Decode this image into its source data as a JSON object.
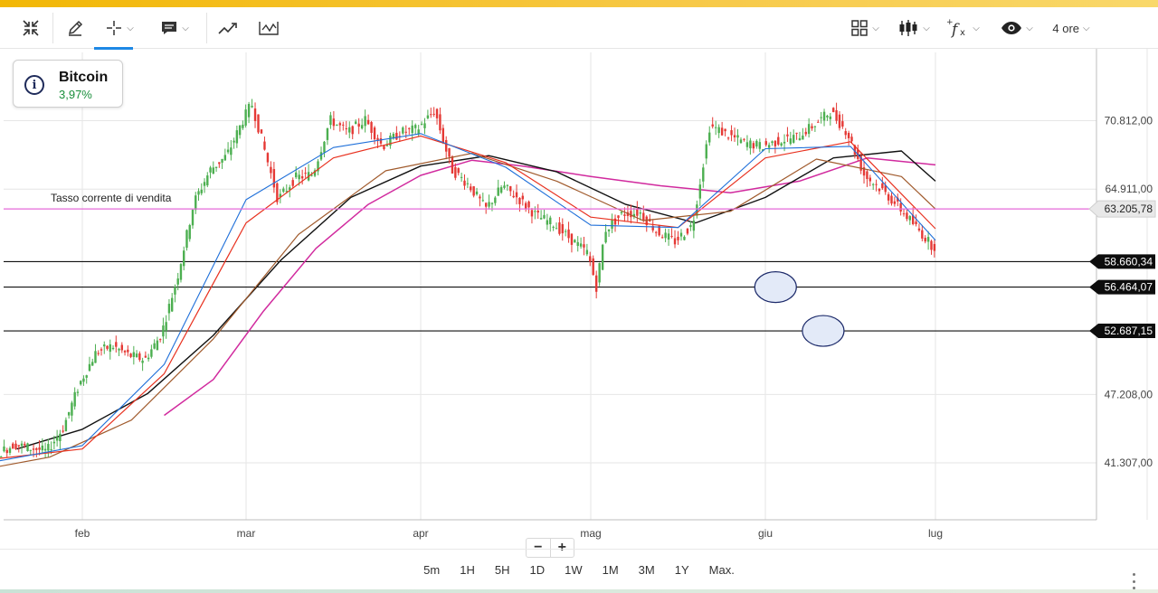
{
  "toolbar": {
    "icons": [
      "collapse-icon",
      "pencil-icon",
      "crosshair-icon",
      "comment-icon",
      "trend-icon",
      "indicator-chart-icon",
      "layout-grid-icon",
      "candlestick-icon",
      "function-icon",
      "eye-icon"
    ],
    "interval_label": "4 ore"
  },
  "asset": {
    "name": "Bitcoin",
    "change": "3,97%",
    "change_color": "#1a8f3c"
  },
  "colors": {
    "accent": "#1e88e5",
    "sell_line": "#e66ad8",
    "ema_fast": "#1e6fd9",
    "ema_mid": "#e8311f",
    "ema_slow": "#a05a2c",
    "ma_long_black": "#111111",
    "ma_long_magenta": "#d12a9e",
    "up_candle": "#4caf50",
    "down_candle": "#e53935"
  },
  "chart_data": {
    "type": "line",
    "title": "",
    "x_ticks": [
      "feb",
      "mar",
      "apr",
      "mag",
      "giu",
      "lug"
    ],
    "y_ticks": [
      "70.812,00",
      "64.911,00",
      "47.208,00",
      "41.307,00"
    ],
    "ylim": [
      36400,
      76700
    ],
    "grid": true,
    "sell_line": {
      "label": "Tasso corrente di vendita",
      "value": 63205.78,
      "tag": "63.205,78"
    },
    "horizontal_levels": [
      {
        "value": 58660.34,
        "tag": "58.660,34"
      },
      {
        "value": 56464.07,
        "tag": "56.464,07"
      },
      {
        "value": 52687.15,
        "tag": "52.687,15"
      }
    ],
    "annotations": [
      {
        "type": "ellipse",
        "x": 5.06,
        "y": 56464
      },
      {
        "type": "ellipse",
        "x": 5.34,
        "y": 52687
      }
    ],
    "x_index_note": "x values are months from start of January (1 = feb)",
    "series": [
      {
        "name": "",
        "kind": "price",
        "x": [
          0,
          0.1,
          0.2,
          0.3,
          0.4,
          0.5,
          0.6,
          0.7,
          0.8,
          0.9,
          1.0,
          1.1,
          1.2,
          1.3,
          1.4,
          1.5,
          1.6,
          1.7,
          1.8,
          1.9,
          2.0,
          2.05,
          2.1,
          2.15,
          2.2,
          2.3,
          2.4,
          2.5,
          2.6,
          2.7,
          2.8,
          2.9,
          3.0,
          3.1,
          3.2,
          3.3,
          3.4,
          3.5,
          3.6,
          3.7,
          3.8,
          3.9,
          4.0,
          4.05,
          4.1,
          4.2,
          4.3,
          4.4,
          4.5,
          4.6,
          4.7,
          4.8,
          4.9,
          5.0,
          5.1,
          5.2,
          5.3,
          5.4,
          5.5,
          5.6,
          5.7,
          5.8,
          5.9,
          6.0
        ],
        "y": [
          42200,
          41300,
          40300,
          39900,
          40600,
          42100,
          42900,
          42600,
          42300,
          44300,
          48100,
          50800,
          51400,
          50600,
          50200,
          52400,
          57400,
          63800,
          66600,
          67800,
          70900,
          72300,
          69600,
          66800,
          64000,
          65900,
          66200,
          70900,
          69800,
          70900,
          68600,
          69800,
          70100,
          71700,
          66600,
          65300,
          63200,
          65200,
          64000,
          62600,
          61900,
          60600,
          59400,
          56500,
          61400,
          62800,
          62900,
          61200,
          60400,
          61800,
          70400,
          69600,
          68900,
          68600,
          69100,
          69400,
          70400,
          71600,
          69800,
          66100,
          64900,
          63400,
          61700,
          60000
        ]
      },
      {
        "name": "",
        "kind": "ema_fast",
        "x": [
          0,
          0.5,
          1.0,
          1.5,
          2.0,
          2.5,
          3.0,
          3.5,
          4.0,
          4.5,
          5.0,
          5.5,
          6.0
        ],
        "y": [
          42000,
          41500,
          42800,
          49800,
          64000,
          68500,
          69700,
          66800,
          61800,
          61600,
          68400,
          68600,
          60500
        ]
      },
      {
        "name": "",
        "kind": "ema_mid",
        "x": [
          0,
          0.5,
          1.0,
          1.5,
          2.0,
          2.5,
          3.0,
          3.5,
          4.0,
          4.5,
          5.0,
          5.5,
          6.0
        ],
        "y": [
          42000,
          41700,
          42500,
          49000,
          62000,
          67600,
          69500,
          67200,
          62500,
          61600,
          67600,
          69000,
          61500
        ]
      },
      {
        "name": "",
        "kind": "ema_slow",
        "x": [
          0.3,
          0.8,
          1.3,
          1.8,
          2.3,
          2.8,
          3.3,
          3.8,
          4.3,
          4.8,
          5.3,
          5.8,
          6.0
        ],
        "y": [
          40500,
          41800,
          45000,
          52000,
          61000,
          66500,
          68000,
          65600,
          62200,
          63000,
          67500,
          66000,
          63200
        ]
      },
      {
        "name": "",
        "kind": "ma_long_black",
        "x": [
          0.6,
          1.0,
          1.4,
          1.8,
          2.2,
          2.6,
          3.0,
          3.4,
          3.8,
          4.2,
          4.6,
          5.0,
          5.4,
          5.8,
          6.0
        ],
        "y": [
          42500,
          44200,
          47300,
          52300,
          58800,
          64200,
          66900,
          67800,
          66400,
          63600,
          62000,
          64200,
          67600,
          68200,
          65600
        ]
      },
      {
        "name": "",
        "kind": "ma_long_magenta",
        "x": [
          1.5,
          1.8,
          2.1,
          2.4,
          2.7,
          3.0,
          3.3,
          3.6,
          4.0,
          4.4,
          4.8,
          5.2,
          5.6,
          6.0
        ],
        "y": [
          45400,
          48500,
          54400,
          59800,
          63600,
          66100,
          67400,
          66900,
          66000,
          65200,
          64600,
          65600,
          67600,
          67000
        ]
      }
    ]
  },
  "bottom_bar": {
    "periods": [
      "5m",
      "1H",
      "5H",
      "1D",
      "1W",
      "1M",
      "3M",
      "1Y",
      "Max."
    ]
  }
}
